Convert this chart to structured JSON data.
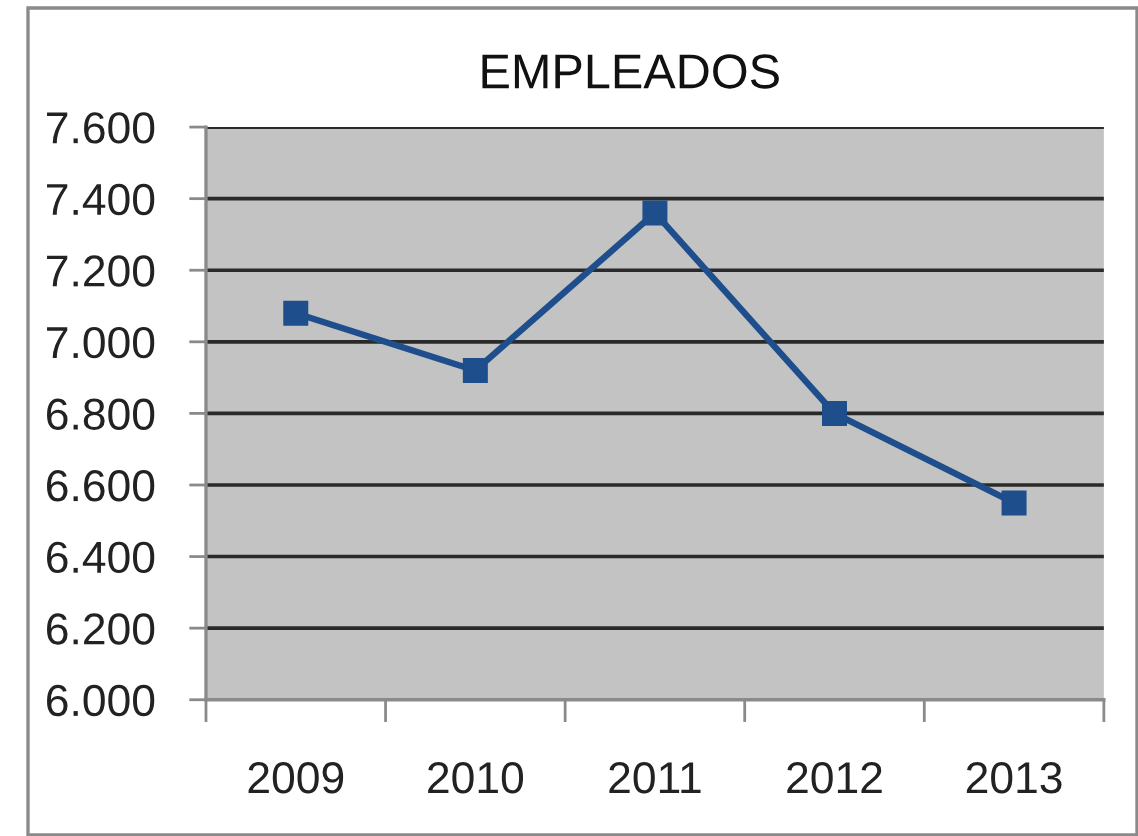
{
  "chart_data": {
    "type": "line",
    "title": "EMPLEADOS",
    "categories": [
      "2009",
      "2010",
      "2011",
      "2012",
      "2013"
    ],
    "series": [
      {
        "color": "#1f4e8c",
        "values": [
          7080,
          6920,
          7360,
          6800,
          6550
        ]
      }
    ],
    "ylim": [
      6000,
      7600
    ],
    "yticks": [
      {
        "value": 6000,
        "label": "6.000"
      },
      {
        "value": 6200,
        "label": "6.200"
      },
      {
        "value": 6400,
        "label": "6.400"
      },
      {
        "value": 6600,
        "label": "6.600"
      },
      {
        "value": 6800,
        "label": "6.800"
      },
      {
        "value": 7000,
        "label": "7.000"
      },
      {
        "value": 7200,
        "label": "7.200"
      },
      {
        "value": 7400,
        "label": "7.400"
      },
      {
        "value": 7600,
        "label": "7.600"
      }
    ],
    "grid": "y",
    "marker": "square",
    "line_style": "solid"
  }
}
